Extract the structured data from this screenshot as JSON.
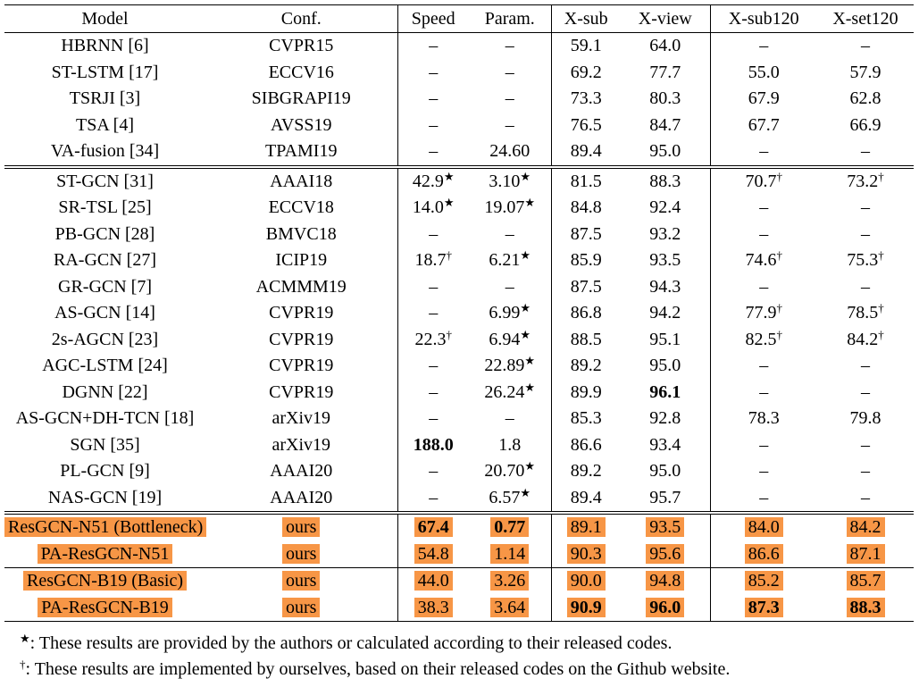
{
  "table": {
    "header": [
      "Model",
      "Conf.",
      "Speed",
      "Param.",
      "X-sub",
      "X-view",
      "X-sub120",
      "X-set120"
    ],
    "sections": [
      {
        "rows": [
          {
            "cells": [
              "HBRNN [6]",
              "CVPR15",
              "–",
              "–",
              "59.1",
              "64.0",
              "–",
              "–"
            ]
          },
          {
            "cells": [
              "ST-LSTM [17]",
              "ECCV16",
              "–",
              "–",
              "69.2",
              "77.7",
              "55.0",
              "57.9"
            ]
          },
          {
            "cells": [
              "TSRJI [3]",
              "SIBGRAPI19",
              "–",
              "–",
              "73.3",
              "80.3",
              "67.9",
              "62.8"
            ]
          },
          {
            "cells": [
              "TSA [4]",
              "AVSS19",
              "–",
              "–",
              "76.5",
              "84.7",
              "67.7",
              "66.9"
            ]
          },
          {
            "cells": [
              "VA-fusion [34]",
              "TPAMI19",
              "–",
              "24.60",
              "89.4",
              "95.0",
              "–",
              "–"
            ]
          }
        ]
      },
      {
        "rows": [
          {
            "cells": [
              "ST-GCN [31]",
              "AAAI18",
              {
                "text": "42.9",
                "sup": "★"
              },
              {
                "text": "3.10",
                "sup": "★"
              },
              "81.5",
              "88.3",
              {
                "text": "70.7",
                "sup": "†"
              },
              {
                "text": "73.2",
                "sup": "†"
              }
            ]
          },
          {
            "cells": [
              "SR-TSL [25]",
              "ECCV18",
              {
                "text": "14.0",
                "sup": "★"
              },
              {
                "text": "19.07",
                "sup": "★"
              },
              "84.8",
              "92.4",
              "–",
              "–"
            ]
          },
          {
            "cells": [
              "PB-GCN [28]",
              "BMVC18",
              "–",
              "–",
              "87.5",
              "93.2",
              "–",
              "–"
            ]
          },
          {
            "cells": [
              "RA-GCN [27]",
              "ICIP19",
              {
                "text": "18.7",
                "sup": "†"
              },
              {
                "text": "6.21",
                "sup": "★"
              },
              "85.9",
              "93.5",
              {
                "text": "74.6",
                "sup": "†"
              },
              {
                "text": "75.3",
                "sup": "†"
              }
            ]
          },
          {
            "cells": [
              "GR-GCN [7]",
              "ACMMM19",
              "–",
              "–",
              "87.5",
              "94.3",
              "–",
              "–"
            ]
          },
          {
            "cells": [
              "AS-GCN [14]",
              "CVPR19",
              "–",
              {
                "text": "6.99",
                "sup": "★"
              },
              "86.8",
              "94.2",
              {
                "text": "77.9",
                "sup": "†"
              },
              {
                "text": "78.5",
                "sup": "†"
              }
            ]
          },
          {
            "cells": [
              "2s-AGCN [23]",
              "CVPR19",
              {
                "text": "22.3",
                "sup": "†"
              },
              {
                "text": "6.94",
                "sup": "★"
              },
              "88.5",
              "95.1",
              {
                "text": "82.5",
                "sup": "†"
              },
              {
                "text": "84.2",
                "sup": "†"
              }
            ]
          },
          {
            "cells": [
              "AGC-LSTM [24]",
              "CVPR19",
              "–",
              {
                "text": "22.89",
                "sup": "★"
              },
              "89.2",
              "95.0",
              "–",
              "–"
            ]
          },
          {
            "cells": [
              "DGNN [22]",
              "CVPR19",
              "–",
              {
                "text": "26.24",
                "sup": "★"
              },
              "89.9",
              {
                "text": "96.1",
                "bold": true
              },
              "–",
              "–"
            ]
          },
          {
            "cells": [
              "AS-GCN+DH-TCN [18]",
              "arXiv19",
              "–",
              "–",
              "85.3",
              "92.8",
              "78.3",
              "79.8"
            ]
          },
          {
            "cells": [
              "SGN [35]",
              "arXiv19",
              {
                "text": "188.0",
                "bold": true
              },
              "1.8",
              "86.6",
              "93.4",
              "–",
              "–"
            ]
          },
          {
            "cells": [
              "PL-GCN [9]",
              "AAAI20",
              "–",
              {
                "text": "20.70",
                "sup": "★"
              },
              "89.2",
              "95.0",
              "–",
              "–"
            ]
          },
          {
            "cells": [
              "NAS-GCN [19]",
              "AAAI20",
              "–",
              {
                "text": "6.57",
                "sup": "★"
              },
              "89.4",
              "95.7",
              "–",
              "–"
            ]
          }
        ]
      },
      {
        "highlight": true,
        "rows": [
          {
            "cells": [
              "ResGCN-N51 (Bottleneck)",
              "ours",
              {
                "text": "67.4",
                "bold": true
              },
              {
                "text": "0.77",
                "bold": true
              },
              "89.1",
              "93.5",
              "84.0",
              "84.2"
            ]
          },
          {
            "cells": [
              "PA-ResGCN-N51",
              "ours",
              "54.8",
              "1.14",
              "90.3",
              "95.6",
              "86.6",
              "87.1"
            ]
          }
        ]
      },
      {
        "highlight": true,
        "rows": [
          {
            "cells": [
              "ResGCN-B19 (Basic)",
              "ours",
              "44.0",
              "3.26",
              "90.0",
              "94.8",
              "85.2",
              "85.7"
            ]
          },
          {
            "cells": [
              "PA-ResGCN-B19",
              "ours",
              "38.3",
              "3.64",
              {
                "text": "90.9",
                "bold": true
              },
              {
                "text": "96.0",
                "bold": true
              },
              {
                "text": "87.3",
                "bold": true
              },
              {
                "text": "88.3",
                "bold": true
              }
            ]
          }
        ]
      }
    ]
  },
  "notes": [
    {
      "mark": "★",
      "text": ": These results are provided by the authors or calculated according to their released codes."
    },
    {
      "mark": "†",
      "text": ": These results are implemented by ourselves, based on their released codes on the Github website."
    }
  ]
}
